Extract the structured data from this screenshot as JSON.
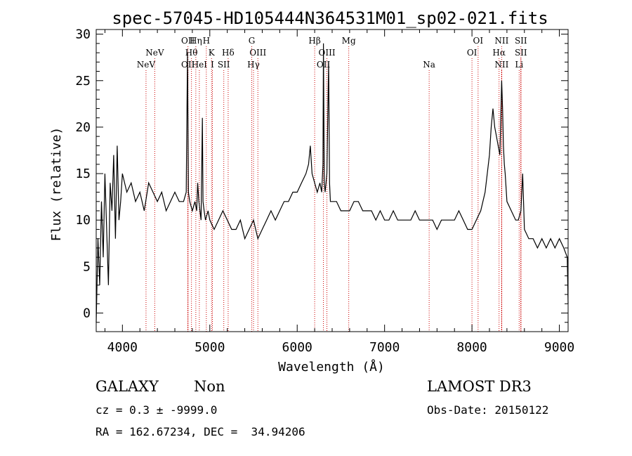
{
  "chart_data": {
    "type": "line",
    "title": "spec-57045-HD105444N364531M01_sp02-021.fits",
    "xlabel": "Wavelength (Å)",
    "ylabel": "Flux (relative)",
    "xlim": [
      3700,
      9100
    ],
    "ylim": [
      -2,
      30.5
    ],
    "x_ticks": [
      4000,
      5000,
      6000,
      7000,
      8000,
      9000
    ],
    "y_ticks": [
      0,
      5,
      10,
      15,
      20,
      25,
      30
    ],
    "grid": false,
    "line_color": "#000000",
    "marker_color": "#cc0000",
    "series": [
      {
        "x": [
          3700,
          3720,
          3740,
          3760,
          3780,
          3800,
          3820,
          3840,
          3860,
          3880,
          3900,
          3920,
          3940,
          3960,
          3980,
          4000,
          4050,
          4100,
          4150,
          4200,
          4250,
          4300,
          4350,
          4400,
          4450,
          4500,
          4550,
          4600,
          4650,
          4700,
          4730,
          4745,
          4755,
          4770,
          4800,
          4830,
          4850,
          4861,
          4875,
          4900,
          4915,
          4922,
          4935,
          4950,
          4980,
          5000,
          5050,
          5100,
          5150,
          5200,
          5250,
          5300,
          5350,
          5400,
          5450,
          5500,
          5550,
          5600,
          5650,
          5700,
          5750,
          5800,
          5850,
          5900,
          5950,
          6000,
          6050,
          6100,
          6130,
          6150,
          6170,
          6200,
          6230,
          6260,
          6280,
          6295,
          6300,
          6310,
          6320,
          6340,
          6360,
          6370,
          6380,
          6400,
          6450,
          6500,
          6550,
          6600,
          6650,
          6700,
          6750,
          6800,
          6850,
          6900,
          6950,
          7000,
          7050,
          7100,
          7150,
          7200,
          7250,
          7300,
          7350,
          7400,
          7450,
          7500,
          7550,
          7600,
          7650,
          7700,
          7750,
          7800,
          7850,
          7900,
          7950,
          8000,
          8050,
          8100,
          8150,
          8200,
          8220,
          8240,
          8260,
          8280,
          8300,
          8320,
          8340,
          8350,
          8360,
          8370,
          8380,
          8400,
          8450,
          8500,
          8530,
          8560,
          8580,
          8600,
          8650,
          8700,
          8750,
          8800,
          8850,
          8900,
          8950,
          9000,
          9050,
          9090,
          9100
        ],
        "y": [
          -1,
          8,
          3,
          12,
          6,
          15,
          9,
          3,
          14,
          11,
          17,
          8,
          18,
          10,
          12,
          15,
          13,
          14,
          12,
          13,
          11,
          14,
          13,
          12,
          13,
          11,
          12,
          13,
          12,
          12,
          13,
          28,
          13,
          12,
          11,
          12,
          11,
          14,
          12,
          10,
          21,
          12,
          11,
          10,
          11,
          10,
          9,
          10,
          11,
          10,
          9,
          9,
          10,
          8,
          9,
          10,
          8,
          9,
          10,
          11,
          10,
          11,
          12,
          12,
          13,
          13,
          14,
          15,
          16,
          18,
          15,
          14,
          13,
          14,
          13,
          16,
          29,
          14,
          13,
          15,
          27,
          14,
          12,
          12,
          12,
          11,
          11,
          11,
          12,
          12,
          11,
          11,
          11,
          10,
          11,
          10,
          10,
          11,
          10,
          10,
          10,
          10,
          11,
          10,
          10,
          10,
          10,
          9,
          10,
          10,
          10,
          10,
          11,
          10,
          9,
          9,
          10,
          11,
          13,
          17,
          20,
          22,
          20,
          19,
          18,
          17,
          25,
          22,
          18,
          16,
          15,
          12,
          11,
          10,
          10,
          11,
          15,
          9,
          8,
          8,
          7,
          8,
          7,
          8,
          7,
          8,
          7,
          6,
          1
        ]
      }
    ],
    "line_markers": [
      {
        "label": "NeV",
        "x": 4270,
        "row": 3
      },
      {
        "label": "NeV",
        "x": 4370,
        "row": 2
      },
      {
        "label": "OII",
        "x": 4750,
        "row": 1
      },
      {
        "label": "OII",
        "x": 4750,
        "row": 3
      },
      {
        "label": "Hη",
        "x": 4840,
        "row": 1
      },
      {
        "label": "Hθ",
        "x": 4790,
        "row": 2
      },
      {
        "label": "HeI",
        "x": 4880,
        "row": 3
      },
      {
        "label": "H",
        "x": 4960,
        "row": 1
      },
      {
        "label": "K",
        "x": 5020,
        "row": 2
      },
      {
        "label": "I",
        "x": 5030,
        "row": 3
      },
      {
        "label": "Hδ",
        "x": 5210,
        "row": 2
      },
      {
        "label": "SII",
        "x": 5160,
        "row": 3
      },
      {
        "label": "G",
        "x": 5480,
        "row": 1
      },
      {
        "label": "OIII",
        "x": 5550,
        "row": 2
      },
      {
        "label": "Hγ",
        "x": 5500,
        "row": 3
      },
      {
        "label": "Hβ",
        "x": 6200,
        "row": 1
      },
      {
        "label": "OIII",
        "x": 6340,
        "row": 2
      },
      {
        "label": "OII",
        "x": 6300,
        "row": 3
      },
      {
        "label": "Mg",
        "x": 6590,
        "row": 1
      },
      {
        "label": "Na",
        "x": 7510,
        "row": 3
      },
      {
        "label": "OI",
        "x": 8070,
        "row": 1
      },
      {
        "label": "OI",
        "x": 8000,
        "row": 2
      },
      {
        "label": "NII",
        "x": 8340,
        "row": 1
      },
      {
        "label": "Hα",
        "x": 8310,
        "row": 2
      },
      {
        "label": "NII",
        "x": 8340,
        "row": 3
      },
      {
        "label": "SII",
        "x": 8560,
        "row": 1
      },
      {
        "label": "SII",
        "x": 8560,
        "row": 2
      },
      {
        "label": "Li",
        "x": 8540,
        "row": 3
      }
    ]
  },
  "info": {
    "class": "GALAXY",
    "subclass": "Non",
    "survey": "LAMOST DR3",
    "cz_text": "cz = 0.3 ± -9999.0",
    "obs_date_text": "Obs-Date: 20150122",
    "coord_text": "RA = 162.67234, DEC =  34.94206"
  }
}
